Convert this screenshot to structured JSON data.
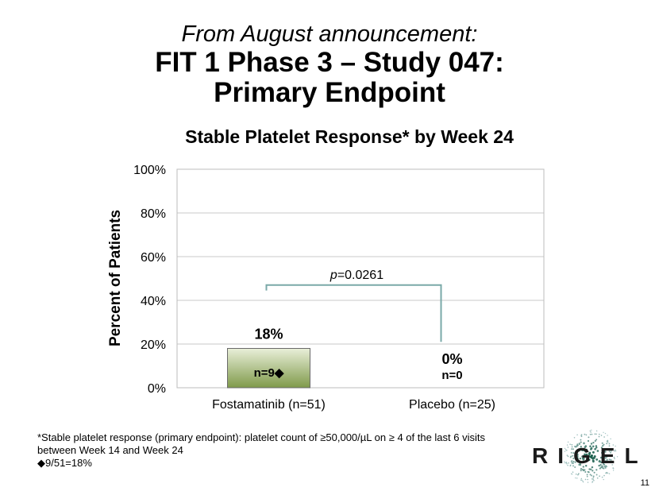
{
  "slide": {
    "title_line1": "From August announcement:",
    "title_line2": "FIT 1 Phase 3 – Study 047:",
    "title_line3": "Primary Endpoint",
    "page_number": "11"
  },
  "chart_data": {
    "type": "bar",
    "title": "Stable Platelet Response* by Week 24",
    "ylabel": "Percent of Patients",
    "xlabel": "",
    "ylim": [
      0,
      100
    ],
    "yticks": [
      "0%",
      "20%",
      "40%",
      "60%",
      "80%",
      "100%"
    ],
    "categories": [
      "Fostamatinib (n=51)",
      "Placebo (n=25)"
    ],
    "values": [
      18,
      0
    ],
    "value_labels": [
      "18%",
      "0%"
    ],
    "count_labels": [
      "n=9◆",
      "n=0"
    ],
    "grid": true,
    "annotation": {
      "text": "p=0.0261",
      "italic_part": "p",
      "rest": "=0.0261"
    },
    "colors": {
      "bar_fill_top": "#e9efd9",
      "bar_fill_bottom": "#7f9a4a",
      "bar_border": "#6a6a6a",
      "bracket": "#7aa9a8",
      "grid": "#c8c8c8"
    }
  },
  "footnote": {
    "line1": "*Stable platelet response (primary endpoint): platelet count of ≥50,000/µL on ≥  4 of the last  6 visits",
    "line2": "between Week 14 and Week 24",
    "line3": "◆9/51=18%"
  },
  "logo": {
    "text": "RIGEL"
  }
}
